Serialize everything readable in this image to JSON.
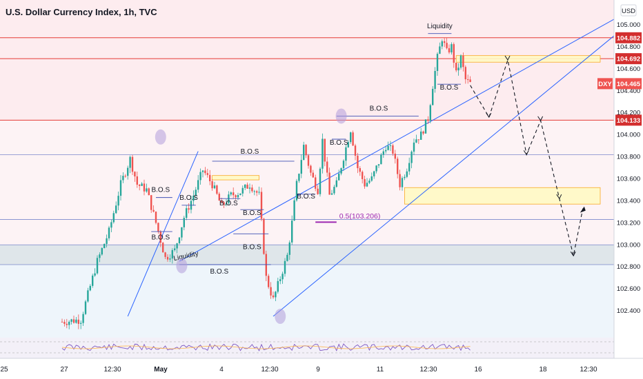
{
  "title": "U.S. Dollar Currency Index, 1h, TVC",
  "currency": "USD",
  "symbol": "DXY",
  "colors": {
    "up": "#26a69a",
    "down": "#ef5350",
    "trendline": "#2962ff",
    "level_line": "#e53935",
    "bos_line": "#3f51b5",
    "zone_fill": "#fff9c4",
    "zone_border": "#f9a825",
    "fib": "#9c27b0",
    "circle": "#b39ddb",
    "projection": "#131722",
    "symbol_tag": "#ef5350"
  },
  "chart_data": {
    "type": "candlestick",
    "title": "U.S. Dollar Currency Index, 1h, TVC",
    "y_range": [
      102.25,
      105.1
    ],
    "y_ticks": [
      "105.000",
      "104.800",
      "104.600",
      "104.400",
      "104.200",
      "104.000",
      "103.800",
      "103.600",
      "103.400",
      "103.200",
      "103.000",
      "102.800",
      "102.600",
      "102.400"
    ],
    "x_ticks": [
      "25",
      "27",
      "12:30",
      "May",
      "4",
      "12:30",
      "9",
      "11",
      "12:30",
      "16",
      "18",
      "12:30"
    ],
    "price_labels": [
      {
        "value": 104.882,
        "text": "104.882",
        "style": "level"
      },
      {
        "value": 104.692,
        "text": "104.692",
        "style": "level"
      },
      {
        "value": 104.465,
        "text": "104.465",
        "style": "current"
      },
      {
        "value": 104.133,
        "text": "104.133",
        "style": "level"
      }
    ],
    "close_path": [
      {
        "i": 0,
        "v": 102.3
      },
      {
        "i": 8,
        "v": 102.32
      },
      {
        "i": 15,
        "v": 102.85
      },
      {
        "i": 20,
        "v": 103.12
      },
      {
        "i": 25,
        "v": 103.55
      },
      {
        "i": 29,
        "v": 103.78
      },
      {
        "i": 32,
        "v": 103.55
      },
      {
        "i": 36,
        "v": 103.5
      },
      {
        "i": 40,
        "v": 103.2
      },
      {
        "i": 44,
        "v": 102.88
      },
      {
        "i": 48,
        "v": 102.95
      },
      {
        "i": 52,
        "v": 103.25
      },
      {
        "i": 56,
        "v": 103.45
      },
      {
        "i": 60,
        "v": 103.68
      },
      {
        "i": 64,
        "v": 103.55
      },
      {
        "i": 68,
        "v": 103.35
      },
      {
        "i": 72,
        "v": 103.45
      },
      {
        "i": 76,
        "v": 103.48
      },
      {
        "i": 80,
        "v": 103.55
      },
      {
        "i": 84,
        "v": 103.45
      },
      {
        "i": 87,
        "v": 102.7
      },
      {
        "i": 90,
        "v": 102.5
      },
      {
        "i": 93,
        "v": 102.7
      },
      {
        "i": 96,
        "v": 102.9
      },
      {
        "i": 98,
        "v": 103.2
      },
      {
        "i": 100,
        "v": 103.55
      },
      {
        "i": 103,
        "v": 103.9
      },
      {
        "i": 106,
        "v": 103.65
      },
      {
        "i": 109,
        "v": 103.5
      },
      {
        "i": 111,
        "v": 103.95
      },
      {
        "i": 114,
        "v": 103.45
      },
      {
        "i": 117,
        "v": 103.55
      },
      {
        "i": 120,
        "v": 103.8
      },
      {
        "i": 123,
        "v": 104.05
      },
      {
        "i": 126,
        "v": 103.7
      },
      {
        "i": 129,
        "v": 103.55
      },
      {
        "i": 132,
        "v": 103.6
      },
      {
        "i": 135,
        "v": 103.75
      },
      {
        "i": 138,
        "v": 103.9
      },
      {
        "i": 141,
        "v": 103.85
      },
      {
        "i": 144,
        "v": 103.55
      },
      {
        "i": 147,
        "v": 103.7
      },
      {
        "i": 150,
        "v": 103.95
      },
      {
        "i": 153,
        "v": 104.0
      },
      {
        "i": 156,
        "v": 104.15
      },
      {
        "i": 158,
        "v": 104.45
      },
      {
        "i": 160,
        "v": 104.7
      },
      {
        "i": 162,
        "v": 104.88
      },
      {
        "i": 164,
        "v": 104.75
      },
      {
        "i": 166,
        "v": 104.8
      },
      {
        "i": 168,
        "v": 104.55
      },
      {
        "i": 170,
        "v": 104.7
      },
      {
        "i": 172,
        "v": 104.5
      },
      {
        "i": 174,
        "v": 104.465
      }
    ],
    "candle_count": 175,
    "horizontal_levels": [
      104.882,
      104.692,
      104.133,
      103.82,
      103.23,
      103.0,
      102.82
    ],
    "gray_zone": [
      102.82,
      103.0
    ],
    "zones": [
      {
        "start_i": 168,
        "end_i": 230,
        "top": 104.72,
        "bottom": 104.66
      },
      {
        "start_i": 146,
        "end_i": 230,
        "top": 103.52,
        "bottom": 103.37
      },
      {
        "start_i": 64,
        "end_i": 84,
        "top": 103.63,
        "bottom": 103.59
      }
    ],
    "trendlines": [
      {
        "from": {
          "i": 90,
          "v": 102.35
        },
        "to": {
          "i": 236,
          "v": 104.9
        }
      },
      {
        "from": {
          "i": 50,
          "v": 102.85
        },
        "to": {
          "i": 236,
          "v": 105.05
        }
      },
      {
        "from": {
          "i": 28,
          "v": 102.35
        },
        "to": {
          "i": 58,
          "v": 103.85
        }
      }
    ],
    "bos": [
      {
        "label": "B.O.S",
        "text_i": 80,
        "text_v": 103.83,
        "line": {
          "x1": 64,
          "x2": 99,
          "v": 103.76
        }
      },
      {
        "label": "B.O.S",
        "text_i": 42,
        "text_v": 103.48,
        "line": {
          "x1": 40,
          "x2": 47,
          "v": 103.43
        }
      },
      {
        "label": "B.O.S",
        "text_i": 54,
        "text_v": 103.41,
        "line": {
          "x1": 51,
          "x2": 57,
          "v": 103.36
        }
      },
      {
        "label": "B.O.S",
        "text_i": 71,
        "text_v": 103.36,
        "line": {
          "x1": 67,
          "x2": 76,
          "v": 103.42
        }
      },
      {
        "label": "B.O.S",
        "text_i": 81,
        "text_v": 103.27,
        "line": {
          "x1": 76,
          "x2": 86,
          "v": 103.32
        }
      },
      {
        "label": "B.O.S",
        "text_i": 42,
        "text_v": 103.05,
        "line": {
          "x1": 38,
          "x2": 47,
          "v": 103.12
        }
      },
      {
        "label": "B.O.S",
        "text_i": 81,
        "text_v": 102.96,
        "line": {
          "x1": 73,
          "x2": 88,
          "v": 103.1
        }
      },
      {
        "label": "B.O.S",
        "text_i": 67,
        "text_v": 102.74,
        "line": {
          "x1": 50,
          "x2": 89,
          "v": 102.82
        }
      },
      {
        "label": "B.O.S",
        "text_i": 104,
        "text_v": 103.42,
        "line": {
          "x1": 100,
          "x2": 108,
          "v": 103.46
        }
      },
      {
        "label": "B.O.S",
        "text_i": 118,
        "text_v": 103.91,
        "line": {
          "x1": 115,
          "x2": 121,
          "v": 103.96
        }
      },
      {
        "label": "B.O.S",
        "text_i": 135,
        "text_v": 104.22,
        "line": {
          "x1": 117,
          "x2": 152,
          "v": 104.17
        }
      },
      {
        "label": "B.O.S",
        "text_i": 165,
        "text_v": 104.41,
        "line": {
          "x1": 160,
          "x2": 170,
          "v": 104.46
        }
      },
      {
        "label": "Liquidity",
        "text_i": 161,
        "text_v": 104.97,
        "line": {
          "x1": 156,
          "x2": 166,
          "v": 104.92
        }
      }
    ],
    "liquidity_low": {
      "label": "Liquidity",
      "text_i": 53,
      "text_v": 102.88
    },
    "fib_label": {
      "text": "0.5(103.206)",
      "text_i": 117,
      "text_v": 103.24,
      "line": {
        "x1": 108,
        "x2": 117,
        "v": 103.206
      }
    },
    "circles": [
      {
        "i": 42,
        "v": 103.98
      },
      {
        "i": 51,
        "v": 102.81
      },
      {
        "i": 93,
        "v": 102.35
      },
      {
        "i": 119,
        "v": 104.17
      }
    ],
    "projection_path": [
      {
        "i": 174,
        "v": 104.45
      },
      {
        "i": 182,
        "v": 104.16
      },
      {
        "i": 190,
        "v": 104.68
      },
      {
        "i": 198,
        "v": 103.82
      },
      {
        "i": 204,
        "v": 104.13
      },
      {
        "i": 212,
        "v": 103.42
      },
      {
        "i": 218,
        "v": 102.9
      },
      {
        "i": 222,
        "v": 103.33
      }
    ]
  }
}
